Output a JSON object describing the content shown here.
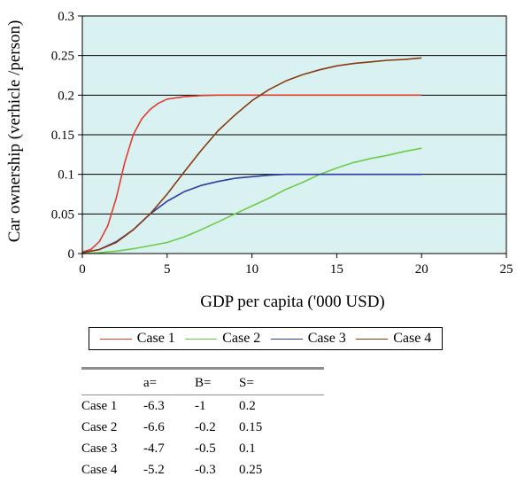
{
  "chart_data": {
    "type": "line",
    "xlabel": "GDP per capita ('000 USD)",
    "ylabel": "Car ownership (verhicle /person)",
    "xlim": [
      0,
      25
    ],
    "ylim": [
      0,
      0.3
    ],
    "x_ticks": [
      "0",
      "5",
      "10",
      "15",
      "20",
      "25"
    ],
    "y_ticks": [
      "0",
      "0.05",
      "0.1",
      "0.15",
      "0.2",
      "0.25",
      "0.3"
    ],
    "grid": "horizontal",
    "plot_background": "#d9f1f1",
    "legend_position": "bottom",
    "series": [
      {
        "name": "Case 1",
        "color": "#e03c31",
        "points": [
          [
            0,
            0.002
          ],
          [
            0.5,
            0.005
          ],
          [
            1,
            0.015
          ],
          [
            1.5,
            0.035
          ],
          [
            2,
            0.07
          ],
          [
            2.5,
            0.115
          ],
          [
            3,
            0.15
          ],
          [
            3.5,
            0.17
          ],
          [
            4,
            0.182
          ],
          [
            4.5,
            0.19
          ],
          [
            5,
            0.195
          ],
          [
            6,
            0.198
          ],
          [
            7,
            0.1995
          ],
          [
            8,
            0.2
          ],
          [
            10,
            0.2
          ],
          [
            15,
            0.2
          ],
          [
            20,
            0.2
          ]
        ]
      },
      {
        "name": "Case 2",
        "color": "#6dcc4a",
        "points": [
          [
            0,
            0
          ],
          [
            1,
            0.001
          ],
          [
            2,
            0.003
          ],
          [
            3,
            0.006
          ],
          [
            4,
            0.01
          ],
          [
            5,
            0.014
          ],
          [
            6,
            0.021
          ],
          [
            7,
            0.03
          ],
          [
            8,
            0.04
          ],
          [
            9,
            0.05
          ],
          [
            10,
            0.06
          ],
          [
            11,
            0.07
          ],
          [
            12,
            0.081
          ],
          [
            13,
            0.09
          ],
          [
            14,
            0.1
          ],
          [
            15,
            0.108
          ],
          [
            16,
            0.115
          ],
          [
            17,
            0.12
          ],
          [
            18,
            0.124
          ],
          [
            19,
            0.129
          ],
          [
            20,
            0.133
          ]
        ]
      },
      {
        "name": "Case 3",
        "color": "#2c3f9e",
        "points": [
          [
            0,
            0.001
          ],
          [
            1,
            0.005
          ],
          [
            2,
            0.015
          ],
          [
            3,
            0.03
          ],
          [
            4,
            0.05
          ],
          [
            5,
            0.066
          ],
          [
            6,
            0.078
          ],
          [
            7,
            0.086
          ],
          [
            8,
            0.091
          ],
          [
            9,
            0.095
          ],
          [
            10,
            0.097
          ],
          [
            11,
            0.099
          ],
          [
            12,
            0.1
          ],
          [
            14,
            0.1
          ],
          [
            16,
            0.1
          ],
          [
            18,
            0.1
          ],
          [
            20,
            0.1
          ]
        ]
      },
      {
        "name": "Case 4",
        "color": "#8a3a12",
        "points": [
          [
            0,
            0.001
          ],
          [
            1,
            0.005
          ],
          [
            2,
            0.014
          ],
          [
            3,
            0.03
          ],
          [
            4,
            0.05
          ],
          [
            5,
            0.075
          ],
          [
            6,
            0.103
          ],
          [
            7,
            0.13
          ],
          [
            8,
            0.155
          ],
          [
            9,
            0.175
          ],
          [
            10,
            0.193
          ],
          [
            11,
            0.207
          ],
          [
            12,
            0.218
          ],
          [
            13,
            0.226
          ],
          [
            14,
            0.232
          ],
          [
            15,
            0.237
          ],
          [
            16,
            0.24
          ],
          [
            17,
            0.242
          ],
          [
            18,
            0.244
          ],
          [
            19,
            0.245
          ],
          [
            20,
            0.247
          ]
        ]
      }
    ]
  },
  "table": {
    "headers": [
      "",
      "a=",
      "B=",
      "S="
    ],
    "rows": [
      [
        "Case 1",
        "-6.3",
        "-1",
        "0.2"
      ],
      [
        "Case 2",
        "-6.6",
        "-0.2",
        "0.15"
      ],
      [
        "Case 3",
        "-4.7",
        "-0.5",
        "0.1"
      ],
      [
        "Case 4",
        "-5.2",
        "-0.3",
        "0.25"
      ]
    ]
  }
}
